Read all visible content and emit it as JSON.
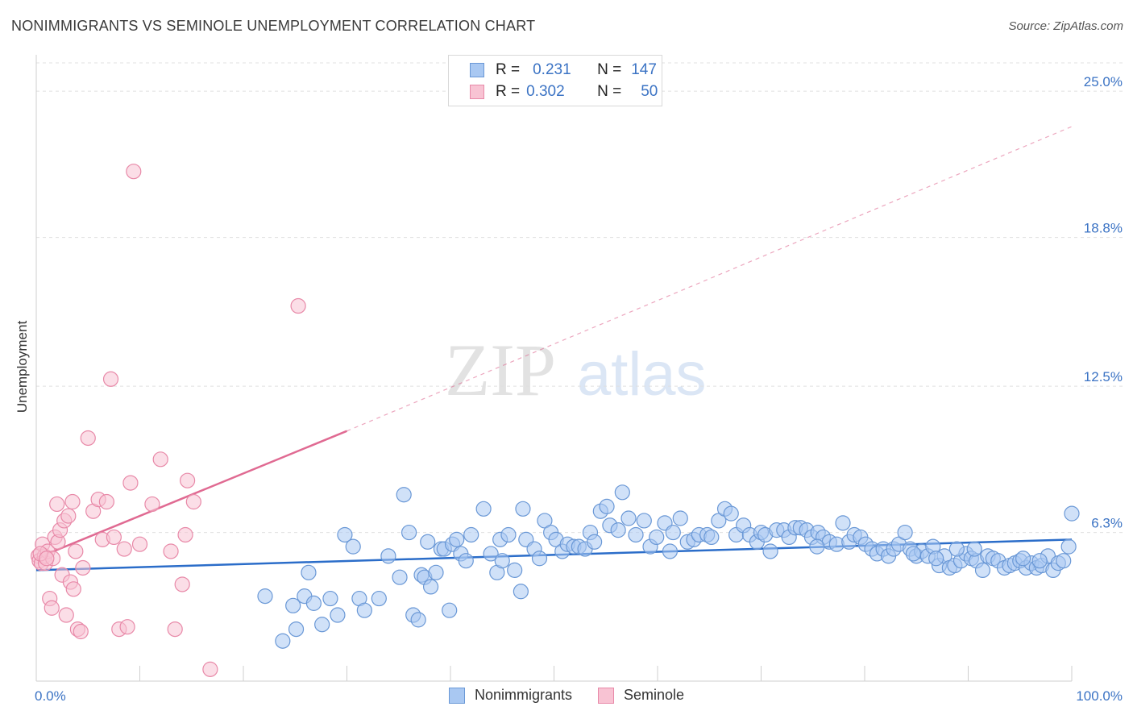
{
  "header": {
    "title": "NONIMMIGRANTS VS SEMINOLE UNEMPLOYMENT CORRELATION CHART",
    "source": "Source: ZipAtlas.com"
  },
  "legend": {
    "rows": [
      {
        "r_label": "R =",
        "r_value": "0.231",
        "n_label": "N =",
        "n_value": "147",
        "color": "#a9c8f2",
        "stroke": "#6a98d6"
      },
      {
        "r_label": "R =",
        "r_value": "0.302",
        "n_label": "N =",
        "n_value": "50",
        "color": "#f8c3d3",
        "stroke": "#e889a8"
      }
    ]
  },
  "bottom_legend": {
    "items": [
      {
        "label": "Nonimmigrants",
        "color": "#a9c8f2",
        "stroke": "#6a98d6"
      },
      {
        "label": "Seminole",
        "color": "#f8c3d3",
        "stroke": "#e889a8"
      }
    ]
  },
  "watermark": {
    "zip": "ZIP",
    "atlas": "atlas"
  },
  "chart_data": {
    "type": "scatter",
    "title": "NONIMMIGRANTS VS SEMINOLE UNEMPLOYMENT CORRELATION CHART",
    "xlabel": "",
    "ylabel": "Unemployment",
    "xlim": [
      0,
      100
    ],
    "ylim": [
      0,
      26.2
    ],
    "x_tick_labels": [
      "0.0%",
      "100.0%"
    ],
    "y_ticks": [
      6.3,
      12.5,
      18.8,
      25.0
    ],
    "y_tick_labels": [
      "6.3%",
      "12.5%",
      "18.8%",
      "25.0%"
    ],
    "grid": true,
    "series": [
      {
        "name": "Nonimmigrants",
        "color": "#6a98d6",
        "fill": "#a9c8f2",
        "trend": {
          "x": [
            0,
            100
          ],
          "y": [
            4.7,
            6.0
          ],
          "color": "#2b6dc9"
        },
        "points": [
          [
            22.1,
            3.6
          ],
          [
            23.8,
            1.7
          ],
          [
            24.8,
            3.2
          ],
          [
            25.1,
            2.2
          ],
          [
            25.9,
            3.6
          ],
          [
            26.3,
            4.6
          ],
          [
            26.8,
            3.3
          ],
          [
            27.6,
            2.4
          ],
          [
            28.4,
            3.5
          ],
          [
            29.1,
            2.8
          ],
          [
            29.8,
            6.2
          ],
          [
            30.6,
            5.7
          ],
          [
            31.2,
            3.5
          ],
          [
            31.7,
            3.0
          ],
          [
            33.1,
            3.5
          ],
          [
            34.0,
            5.3
          ],
          [
            35.1,
            4.4
          ],
          [
            35.5,
            7.9
          ],
          [
            36.0,
            6.3
          ],
          [
            36.4,
            2.8
          ],
          [
            36.9,
            2.6
          ],
          [
            37.2,
            4.5
          ],
          [
            37.5,
            4.4
          ],
          [
            37.8,
            5.9
          ],
          [
            38.1,
            4.0
          ],
          [
            38.6,
            4.6
          ],
          [
            39.1,
            5.6
          ],
          [
            39.4,
            5.6
          ],
          [
            39.9,
            3.0
          ],
          [
            40.2,
            5.8
          ],
          [
            40.6,
            6.0
          ],
          [
            41.0,
            5.4
          ],
          [
            41.5,
            5.1
          ],
          [
            42.0,
            6.2
          ],
          [
            43.2,
            7.3
          ],
          [
            43.9,
            5.4
          ],
          [
            44.5,
            4.6
          ],
          [
            44.8,
            6.0
          ],
          [
            45.0,
            5.1
          ],
          [
            45.6,
            6.2
          ],
          [
            46.2,
            4.7
          ],
          [
            46.8,
            3.8
          ],
          [
            47.0,
            7.3
          ],
          [
            47.3,
            6.0
          ],
          [
            48.1,
            5.6
          ],
          [
            48.6,
            5.2
          ],
          [
            49.1,
            6.8
          ],
          [
            49.7,
            6.3
          ],
          [
            50.2,
            6.0
          ],
          [
            50.8,
            5.5
          ],
          [
            51.3,
            5.8
          ],
          [
            51.9,
            5.7
          ],
          [
            52.4,
            5.7
          ],
          [
            53.0,
            5.6
          ],
          [
            53.5,
            6.3
          ],
          [
            53.9,
            5.9
          ],
          [
            54.5,
            7.2
          ],
          [
            55.1,
            7.4
          ],
          [
            55.4,
            6.6
          ],
          [
            56.2,
            6.4
          ],
          [
            56.6,
            8.0
          ],
          [
            57.2,
            6.9
          ],
          [
            57.9,
            6.2
          ],
          [
            58.7,
            6.8
          ],
          [
            59.3,
            5.7
          ],
          [
            59.9,
            6.1
          ],
          [
            60.7,
            6.7
          ],
          [
            61.2,
            5.5
          ],
          [
            61.5,
            6.3
          ],
          [
            62.2,
            6.9
          ],
          [
            62.9,
            5.9
          ],
          [
            63.5,
            6.0
          ],
          [
            64.0,
            6.2
          ],
          [
            64.8,
            6.2
          ],
          [
            65.2,
            6.1
          ],
          [
            65.9,
            6.8
          ],
          [
            66.5,
            7.3
          ],
          [
            67.1,
            7.1
          ],
          [
            67.6,
            6.2
          ],
          [
            68.3,
            6.6
          ],
          [
            68.9,
            6.2
          ],
          [
            69.6,
            5.9
          ],
          [
            70.0,
            6.3
          ],
          [
            70.4,
            6.2
          ],
          [
            70.9,
            5.5
          ],
          [
            71.5,
            6.4
          ],
          [
            72.2,
            6.4
          ],
          [
            72.7,
            6.1
          ],
          [
            73.3,
            6.5
          ],
          [
            73.8,
            6.5
          ],
          [
            74.4,
            6.4
          ],
          [
            74.9,
            6.1
          ],
          [
            75.5,
            6.3
          ],
          [
            76.0,
            6.1
          ],
          [
            76.6,
            5.9
          ],
          [
            77.3,
            5.8
          ],
          [
            77.9,
            6.7
          ],
          [
            78.5,
            5.9
          ],
          [
            79.0,
            6.2
          ],
          [
            79.6,
            6.1
          ],
          [
            80.1,
            5.8
          ],
          [
            80.7,
            5.6
          ],
          [
            81.2,
            5.4
          ],
          [
            81.8,
            5.6
          ],
          [
            82.3,
            5.3
          ],
          [
            82.8,
            5.6
          ],
          [
            83.3,
            5.8
          ],
          [
            83.9,
            6.3
          ],
          [
            84.4,
            5.6
          ],
          [
            85.0,
            5.3
          ],
          [
            85.5,
            5.5
          ],
          [
            86.1,
            5.3
          ],
          [
            86.6,
            5.7
          ],
          [
            87.2,
            4.9
          ],
          [
            87.7,
            5.3
          ],
          [
            88.2,
            4.8
          ],
          [
            88.7,
            4.9
          ],
          [
            89.3,
            5.1
          ],
          [
            89.8,
            5.4
          ],
          [
            90.3,
            5.2
          ],
          [
            90.8,
            5.1
          ],
          [
            91.4,
            4.7
          ],
          [
            91.9,
            5.3
          ],
          [
            92.4,
            5.2
          ],
          [
            92.9,
            5.1
          ],
          [
            93.5,
            4.8
          ],
          [
            94.0,
            4.9
          ],
          [
            94.5,
            5.0
          ],
          [
            95.0,
            5.1
          ],
          [
            95.6,
            4.8
          ],
          [
            96.1,
            5.0
          ],
          [
            96.6,
            4.8
          ],
          [
            97.1,
            4.9
          ],
          [
            97.7,
            5.3
          ],
          [
            98.2,
            4.7
          ],
          [
            98.7,
            5.0
          ],
          [
            99.2,
            5.1
          ],
          [
            99.7,
            5.7
          ],
          [
            100.0,
            7.1
          ],
          [
            96.9,
            5.1
          ],
          [
            95.3,
            5.2
          ],
          [
            90.6,
            5.6
          ],
          [
            88.9,
            5.6
          ],
          [
            86.9,
            5.2
          ],
          [
            84.7,
            5.4
          ],
          [
            75.4,
            5.7
          ]
        ]
      },
      {
        "name": "Seminole",
        "color": "#e889a8",
        "fill": "#f8c3d3",
        "trend": {
          "x": [
            0,
            30
          ],
          "y": [
            5.2,
            10.6
          ],
          "color": "#e06a92",
          "dashed_extension": {
            "x": [
              30,
              100
            ],
            "y": [
              10.6,
              23.5
            ]
          }
        },
        "points": [
          [
            0.2,
            5.3
          ],
          [
            0.3,
            5.1
          ],
          [
            0.5,
            5.0
          ],
          [
            0.6,
            5.8
          ],
          [
            0.8,
            5.3
          ],
          [
            0.9,
            5.0
          ],
          [
            1.1,
            5.5
          ],
          [
            1.3,
            3.5
          ],
          [
            1.5,
            3.1
          ],
          [
            1.6,
            5.2
          ],
          [
            1.8,
            6.1
          ],
          [
            2.0,
            7.5
          ],
          [
            2.1,
            5.9
          ],
          [
            2.3,
            6.4
          ],
          [
            2.5,
            4.5
          ],
          [
            2.7,
            6.8
          ],
          [
            2.9,
            2.8
          ],
          [
            3.1,
            7.0
          ],
          [
            3.3,
            4.2
          ],
          [
            3.5,
            7.6
          ],
          [
            3.6,
            3.9
          ],
          [
            3.8,
            5.5
          ],
          [
            4.0,
            2.2
          ],
          [
            4.3,
            2.1
          ],
          [
            4.5,
            4.8
          ],
          [
            5.0,
            10.3
          ],
          [
            5.5,
            7.2
          ],
          [
            6.0,
            7.7
          ],
          [
            6.4,
            6.0
          ],
          [
            6.8,
            7.6
          ],
          [
            7.2,
            12.8
          ],
          [
            7.5,
            6.1
          ],
          [
            8.0,
            2.2
          ],
          [
            8.5,
            5.6
          ],
          [
            8.8,
            2.3
          ],
          [
            9.1,
            8.4
          ],
          [
            9.4,
            21.6
          ],
          [
            10.0,
            5.8
          ],
          [
            11.2,
            7.5
          ],
          [
            12.0,
            9.4
          ],
          [
            13.0,
            5.5
          ],
          [
            14.1,
            4.1
          ],
          [
            14.4,
            6.2
          ],
          [
            14.6,
            8.5
          ],
          [
            15.2,
            7.6
          ],
          [
            16.8,
            0.5
          ],
          [
            25.3,
            15.9
          ],
          [
            13.4,
            2.2
          ],
          [
            0.4,
            5.4
          ],
          [
            1.0,
            5.2
          ]
        ]
      }
    ]
  }
}
